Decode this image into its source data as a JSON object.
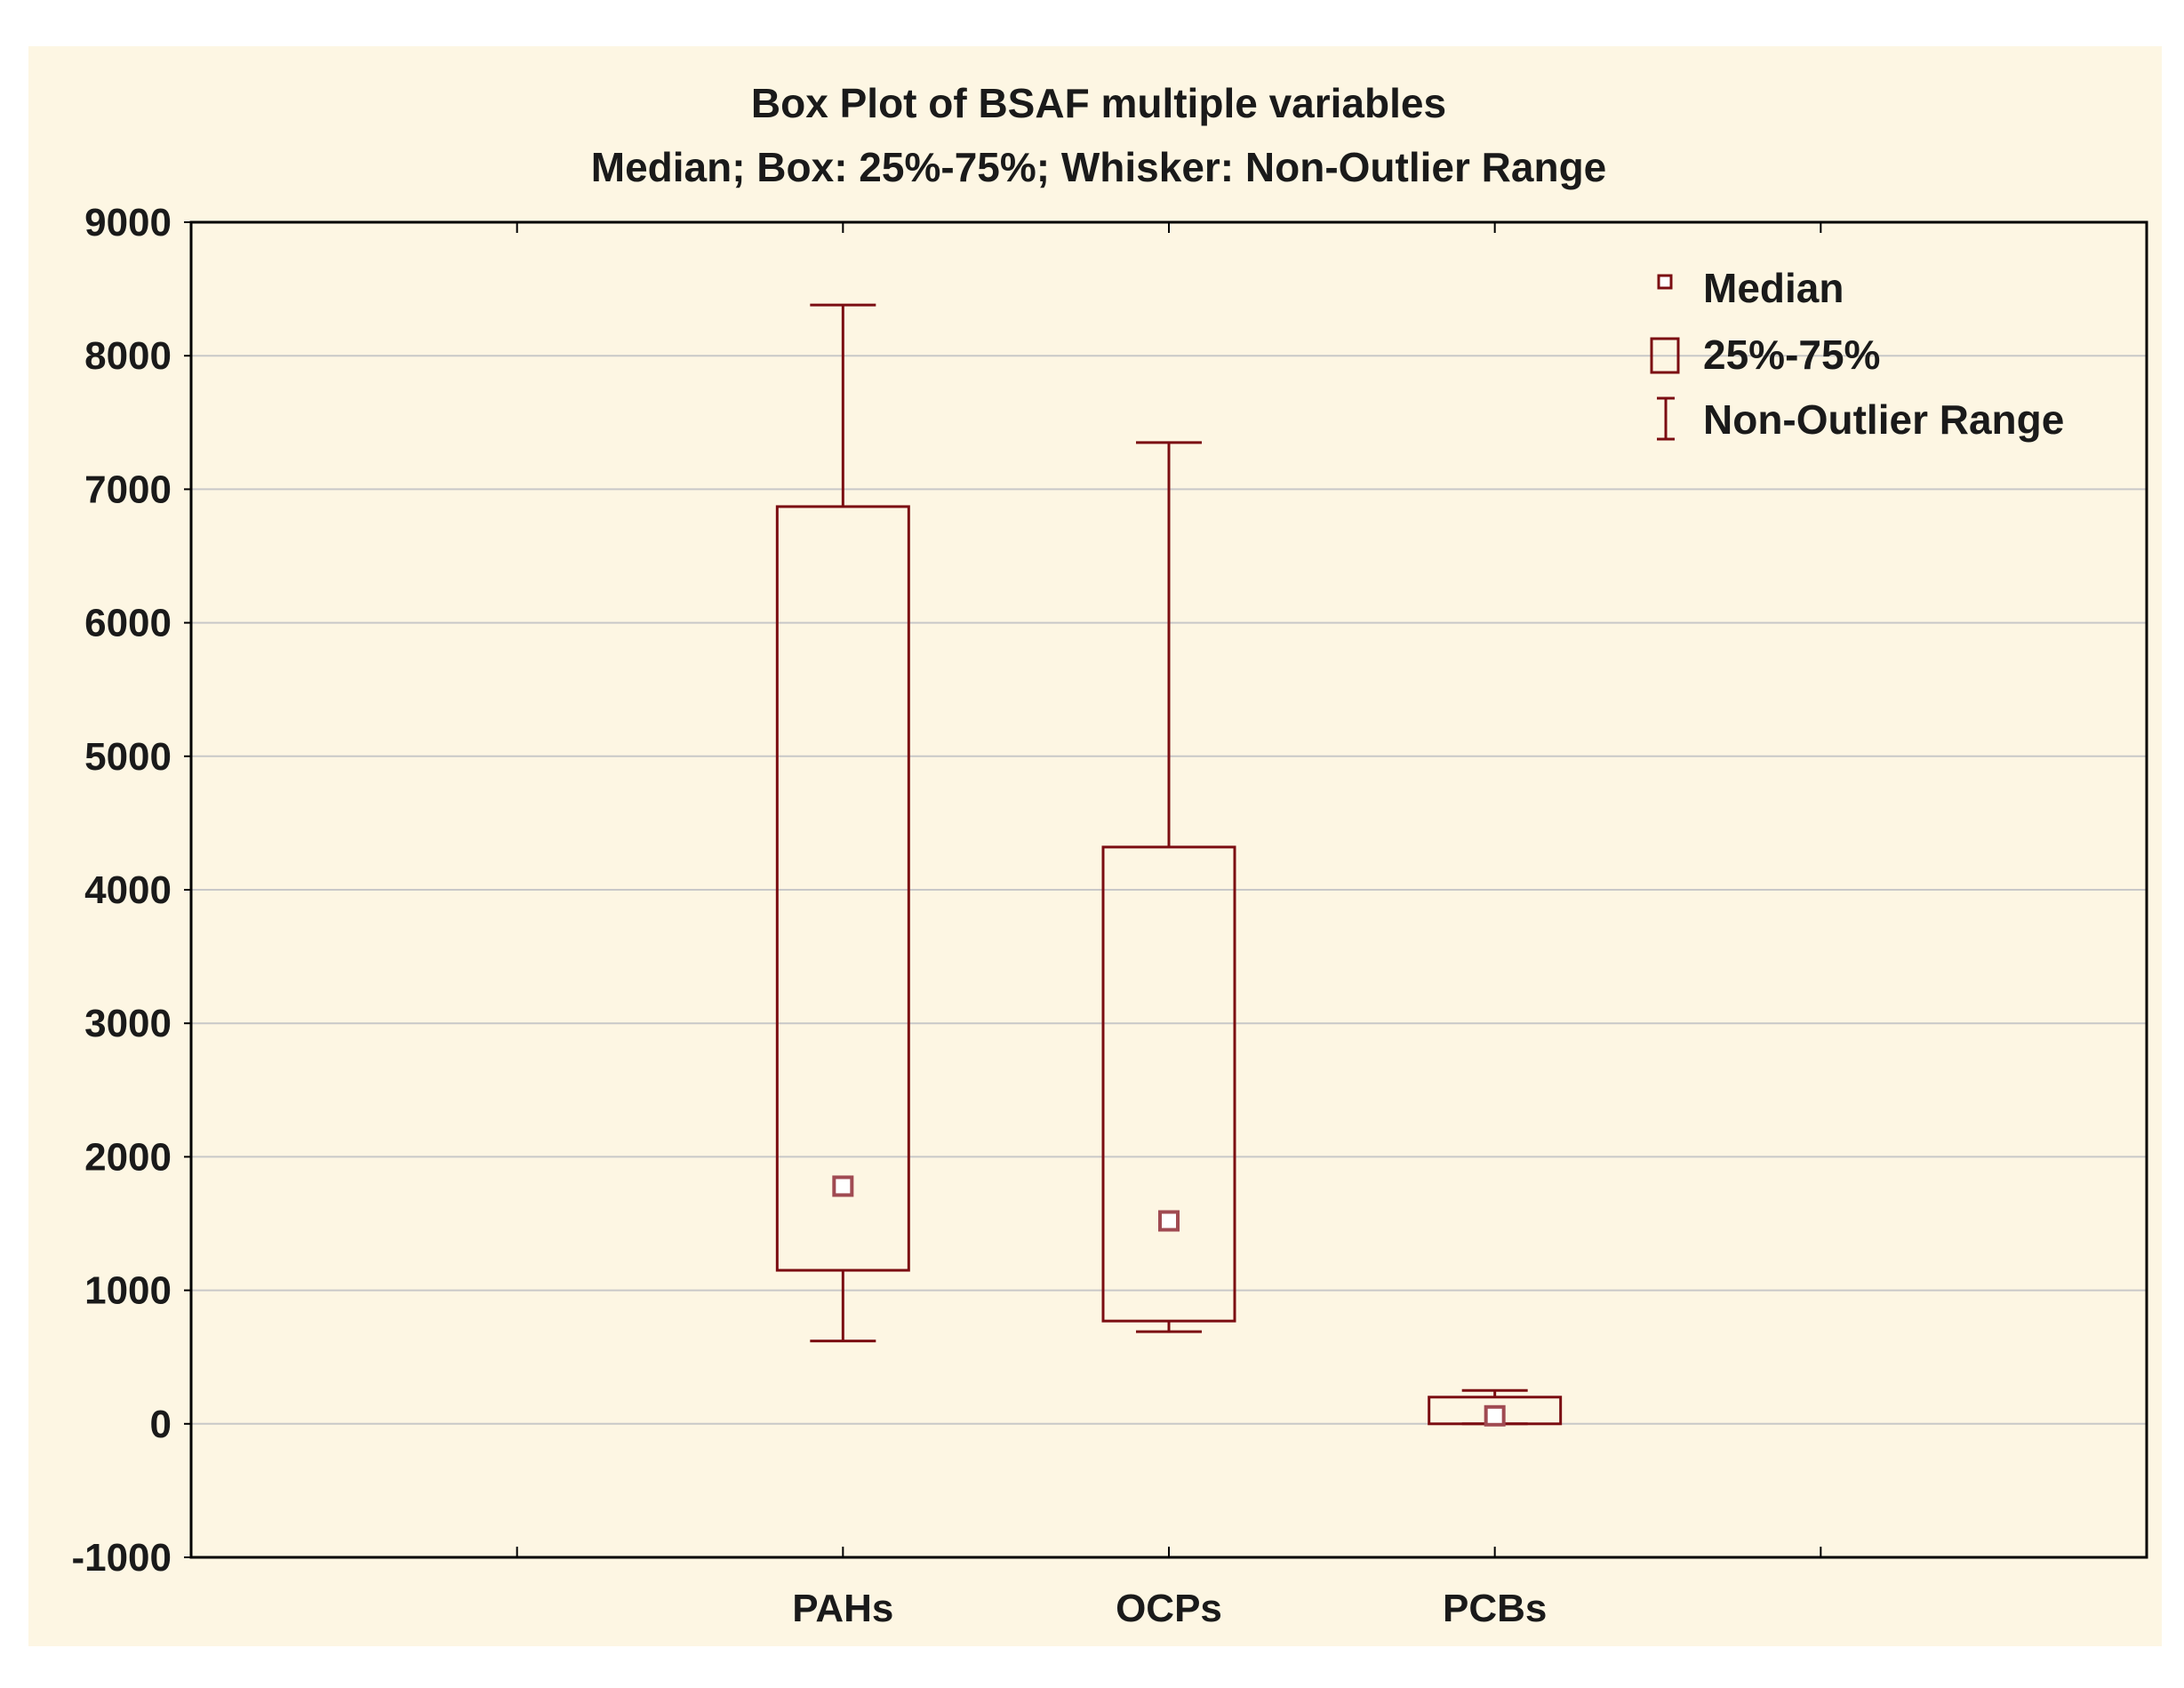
{
  "chart_data": {
    "type": "boxplot",
    "title": "Box Plot of BSAF multiple variables",
    "subtitle": "Median; Box: 25%-75%; Whisker: Non-Outlier Range",
    "xlabel": "",
    "ylabel": "",
    "ylim": [
      -1000,
      9000
    ],
    "yticks": [
      -1000,
      0,
      1000,
      2000,
      3000,
      4000,
      5000,
      6000,
      7000,
      8000,
      9000
    ],
    "ytick_labels": [
      "-1000",
      "0",
      "1000",
      "2000",
      "3000",
      "4000",
      "5000",
      "6000",
      "7000",
      "8000",
      "9000"
    ],
    "categories": [
      "PAHs",
      "OCPs",
      "PCBs"
    ],
    "x_slots": 6,
    "x_positions": [
      2,
      3,
      4
    ],
    "grid": true,
    "colors": {
      "box": "#7b0d12",
      "median": "#a04a52",
      "grid": "#c8c8c8",
      "axis": "#000000",
      "background": "#fdf6e3"
    },
    "series": [
      {
        "name": "PAHs",
        "median": 1780,
        "q1": 1150,
        "q3": 6870,
        "whisker_low": 620,
        "whisker_high": 8380
      },
      {
        "name": "OCPs",
        "median": 1520,
        "q1": 770,
        "q3": 4320,
        "whisker_low": 690,
        "whisker_high": 7350
      },
      {
        "name": "PCBs",
        "median": 60,
        "q1": 0,
        "q3": 200,
        "whisker_low": 0,
        "whisker_high": 250
      }
    ],
    "legend": {
      "position": "top-right",
      "items": [
        {
          "symbol": "median",
          "label": "Median"
        },
        {
          "symbol": "box",
          "label": "25%-75%"
        },
        {
          "symbol": "whisker",
          "label": "Non-Outlier Range"
        }
      ]
    }
  }
}
